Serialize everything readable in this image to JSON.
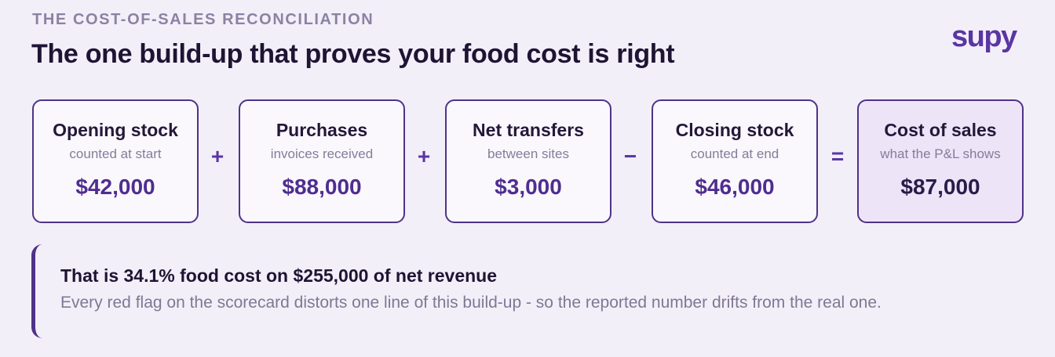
{
  "header": {
    "eyebrow": "THE COST-OF-SALES RECONCILIATION",
    "title": "The one build-up that proves your food cost is right",
    "logo": "supy"
  },
  "cards": [
    {
      "title": "Opening stock",
      "subtitle": "counted at start",
      "value": "$42,000"
    },
    {
      "title": "Purchases",
      "subtitle": "invoices received",
      "value": "$88,000"
    },
    {
      "title": "Net transfers",
      "subtitle": "between sites",
      "value": "$3,000"
    },
    {
      "title": "Closing stock",
      "subtitle": "counted at end",
      "value": "$46,000"
    },
    {
      "title": "Cost of sales",
      "subtitle": "what the P&L shows",
      "value": "$87,000"
    }
  ],
  "operators": [
    "+",
    "+",
    "−",
    "="
  ],
  "callout": {
    "title": "That is 34.1% food cost on $255,000 of net revenue",
    "body": "Every red flag on the scorecard distorts one line of this build-up - so the reported number drifts from the real one."
  }
}
